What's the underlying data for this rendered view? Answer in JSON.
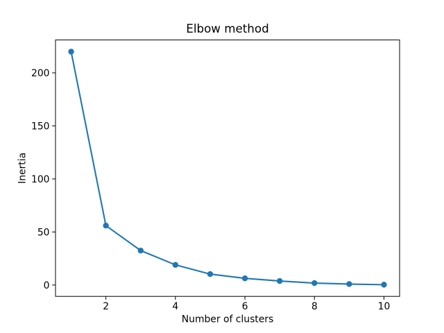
{
  "figure": {
    "background": "#ffffff"
  },
  "chart_data": {
    "type": "line",
    "title": "Elbow method",
    "xlabel": "Number of clusters",
    "ylabel": "Inertia",
    "x": [
      1,
      2,
      3,
      4,
      5,
      6,
      7,
      8,
      9,
      10
    ],
    "y": [
      220,
      56,
      32.5,
      19,
      10.3,
      6.3,
      3.8,
      1.8,
      0.9,
      0.3
    ],
    "x_ticks": [
      2,
      4,
      6,
      8,
      10
    ],
    "y_ticks": [
      0,
      50,
      100,
      150,
      200
    ],
    "xlim": [
      0.55,
      10.45
    ],
    "ylim": [
      -10.7,
      231.0
    ],
    "grid": false,
    "legend_position": "none",
    "line_color": "#1f77b4",
    "marker_color": "#1f77b4",
    "marker": "o",
    "axis_color": "#000000",
    "text_color": "#000000"
  }
}
